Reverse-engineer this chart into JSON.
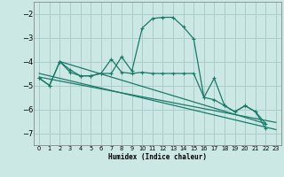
{
  "xlabel": "Humidex (Indice chaleur)",
  "bg_color": "#cce8e4",
  "grid_color": "#aaccca",
  "line_color": "#1a7a6a",
  "xlim": [
    -0.5,
    23.5
  ],
  "ylim": [
    -7.5,
    -1.5
  ],
  "yticks": [
    -7,
    -6,
    -5,
    -4,
    -3,
    -2
  ],
  "xticks": [
    0,
    1,
    2,
    3,
    4,
    5,
    6,
    7,
    8,
    9,
    10,
    11,
    12,
    13,
    14,
    15,
    16,
    17,
    18,
    19,
    20,
    21,
    22,
    23
  ],
  "series1_x": [
    0,
    1,
    2,
    3,
    4,
    5,
    6,
    7,
    8,
    9,
    10,
    11,
    12,
    13,
    14,
    15,
    16,
    17,
    18,
    19,
    20,
    21,
    22
  ],
  "series1_y": [
    -4.7,
    -5.0,
    -4.0,
    -4.35,
    -4.6,
    -4.6,
    -4.5,
    -4.5,
    -3.8,
    -4.4,
    -2.6,
    -2.2,
    -2.15,
    -2.15,
    -2.55,
    -3.05,
    -5.5,
    -4.7,
    -5.85,
    -6.1,
    -5.85,
    -6.1,
    -6.8
  ],
  "series2_x": [
    0,
    1,
    2,
    3,
    4,
    5,
    6,
    7,
    8,
    9,
    10,
    11,
    12,
    13,
    14,
    15,
    16,
    17,
    18,
    19,
    20,
    21,
    22
  ],
  "series2_y": [
    -4.7,
    -5.0,
    -4.0,
    -4.45,
    -4.6,
    -4.6,
    -4.5,
    -3.9,
    -4.45,
    -4.5,
    -4.45,
    -4.5,
    -4.5,
    -4.5,
    -4.5,
    -4.5,
    -5.5,
    -5.6,
    -5.85,
    -6.1,
    -5.85,
    -6.1,
    -6.6
  ],
  "trend1_x": [
    0,
    23
  ],
  "trend1_y": [
    -4.65,
    -6.55
  ],
  "trend2_x": [
    0,
    23
  ],
  "trend2_y": [
    -4.5,
    -6.85
  ],
  "trend3_x": [
    2,
    22
  ],
  "trend3_y": [
    -4.0,
    -6.6
  ]
}
